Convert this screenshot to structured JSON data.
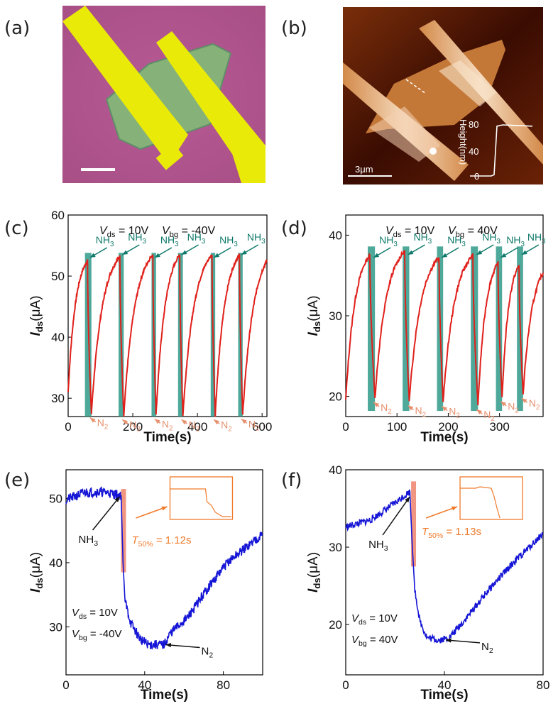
{
  "panel_labels": [
    "(a)",
    "(b)",
    "(c)",
    "(d)",
    "(e)",
    "(f)"
  ],
  "colors": {
    "red_trace": "#e0201b",
    "blue_trace": "#1515d6",
    "teal_band": "#2f9a8a",
    "teal_text": "#0f7a6b",
    "n2_text": "#e6906e",
    "orange": "#f07a2a",
    "pink_band": "#f08a76"
  },
  "image_a": {
    "scale_bar": "",
    "description_colors": [
      "#b6568f",
      "#e8e800",
      "#7fb070"
    ]
  },
  "image_b": {
    "scale_bar_label": "3μm",
    "height_axis_label": "Height(nm)",
    "height_ticks": [
      "80",
      "40",
      "0"
    ],
    "profile_heights_nm": [
      0,
      0,
      0,
      2,
      78,
      80,
      79,
      78
    ]
  },
  "chart_data": [
    {
      "id": "c",
      "type": "line",
      "xlabel": "Time(s)",
      "ylabel_main": "I",
      "ylabel_sub": "ds",
      "ylabel_unit": "(μA)",
      "xlim": [
        0,
        615
      ],
      "ylim": [
        27,
        60
      ],
      "xticks": [
        0,
        200,
        400,
        600
      ],
      "yticks": [
        30,
        40,
        50,
        60
      ],
      "conditions": {
        "vds_main": "V",
        "vds_sub": "ds",
        "vds_val": " = 10V",
        "vbg_main": "V",
        "vbg_sub": "bg",
        "vbg_val": " = -40V"
      },
      "gas_on_main": "NH",
      "gas_on_sub": "3",
      "gas_off_main": "N",
      "gas_off_sub": "2",
      "trace": {
        "start": 31,
        "cycles": [
          {
            "t0": 0,
            "tp": 60,
            "peak": 52.5,
            "td": 72,
            "valley": 27.5
          },
          {
            "t0": 72,
            "tp": 160,
            "peak": 53.2,
            "td": 172,
            "valley": 27.2
          },
          {
            "t0": 172,
            "tp": 262,
            "peak": 53.5,
            "td": 272,
            "valley": 27.3
          },
          {
            "t0": 272,
            "tp": 345,
            "peak": 53.5,
            "td": 355,
            "valley": 27.2
          },
          {
            "t0": 355,
            "tp": 445,
            "peak": 53.5,
            "td": 455,
            "valley": 27.2
          },
          {
            "t0": 455,
            "tp": 530,
            "peak": 53.5,
            "td": 540,
            "valley": 27.3
          }
        ],
        "end_t": 615,
        "end_v": 52.5
      },
      "bands": [
        [
          52,
          72
        ],
        [
          156,
          172
        ],
        [
          258,
          272
        ],
        [
          340,
          355
        ],
        [
          441,
          455
        ],
        [
          526,
          540
        ]
      ],
      "band_ylim": [
        27,
        53.8
      ]
    },
    {
      "id": "d",
      "type": "line",
      "xlabel": "Time(s)",
      "ylabel_main": "I",
      "ylabel_sub": "ds",
      "ylabel_unit": "(μA)",
      "xlim": [
        0,
        385
      ],
      "ylim": [
        17.5,
        42.5
      ],
      "xticks": [
        0,
        100,
        200,
        300
      ],
      "yticks": [
        20,
        30,
        40
      ],
      "conditions": {
        "vds_main": "V",
        "vds_sub": "ds",
        "vds_val": " = 10V",
        "vbg_main": "V",
        "vbg_sub": "bg",
        "vbg_val": " = 40V"
      },
      "gas_on_main": "NH",
      "gas_on_sub": "3",
      "gas_off_main": "N",
      "gas_off_sub": "2",
      "trace": {
        "start": 19.5,
        "cycles": [
          {
            "t0": 0,
            "tp": 47,
            "peak": 37.5,
            "td": 57,
            "valley": 19.8
          },
          {
            "t0": 57,
            "tp": 115,
            "peak": 38,
            "td": 124,
            "valley": 19.4
          },
          {
            "t0": 124,
            "tp": 182,
            "peak": 37.2,
            "td": 190,
            "valley": 19.3
          },
          {
            "t0": 190,
            "tp": 248,
            "peak": 37.5,
            "td": 258,
            "valley": 18.9
          },
          {
            "t0": 258,
            "tp": 297,
            "peak": 36.5,
            "td": 305,
            "valley": 19.9
          },
          {
            "t0": 305,
            "tp": 338,
            "peak": 36.2,
            "td": 346,
            "valley": 20.3
          }
        ],
        "end_t": 385,
        "end_v": 35.3
      },
      "bands": [
        [
          43,
          57
        ],
        [
          111,
          124
        ],
        [
          178,
          190
        ],
        [
          244,
          258
        ],
        [
          293,
          305
        ],
        [
          334,
          346
        ]
      ],
      "band_ylim": [
        18.2,
        38.6
      ]
    },
    {
      "id": "e",
      "type": "line",
      "xlabel": "Time(s)",
      "ylabel_main": "I",
      "ylabel_sub": "ds",
      "ylabel_unit": "(μA)",
      "xlim": [
        0,
        100
      ],
      "ylim": [
        22.5,
        54.5
      ],
      "xticks": [
        0,
        40,
        80
      ],
      "yticks": [
        30,
        40,
        50
      ],
      "conditions": {
        "vds_main": "V",
        "vds_sub": "ds",
        "vds_val": " = 10V",
        "vbg_main": "V",
        "vbg_sub": "bg",
        "vbg_val": " = -40V"
      },
      "gas_on_main": "NH",
      "gas_on_sub": "3",
      "gas_off_main": "N",
      "gas_off_sub": "2",
      "t50_main": "T",
      "t50_sub": "50%",
      "t50_val": " = 1.12s",
      "trace_points": [
        [
          0,
          49.8
        ],
        [
          10,
          51
        ],
        [
          20,
          51
        ],
        [
          28,
          50.5
        ],
        [
          29,
          40
        ],
        [
          30,
          34
        ],
        [
          33,
          30.5
        ],
        [
          38,
          28
        ],
        [
          42,
          27.2
        ],
        [
          50,
          27.2
        ],
        [
          53,
          29
        ],
        [
          62,
          31.5
        ],
        [
          72,
          36
        ],
        [
          82,
          40
        ],
        [
          92,
          42.5
        ],
        [
          100,
          44.5
        ]
      ],
      "noise_amp": 0.75,
      "band": [
        28,
        30.5
      ],
      "band_ylim": [
        38.5,
        51.5
      ]
    },
    {
      "id": "f",
      "type": "line",
      "xlabel": "Time(s)",
      "ylabel_main": "I",
      "ylabel_sub": "ds",
      "ylabel_unit": "(μA)",
      "xlim": [
        0,
        80
      ],
      "ylim": [
        13.5,
        40
      ],
      "xticks": [
        0,
        40,
        80
      ],
      "yticks": [
        20,
        30,
        40
      ],
      "conditions": {
        "vds_main": "V",
        "vds_sub": "ds",
        "vds_val": " = 10V",
        "vbg_main": "V",
        "vbg_sub": "bg",
        "vbg_val": " = 40V"
      },
      "gas_on_main": "NH",
      "gas_on_sub": "3",
      "gas_off_main": "N",
      "gas_off_sub": "2",
      "t50_main": "T",
      "t50_sub": "50%",
      "t50_val": " = 1.13s",
      "trace_points": [
        [
          0,
          32.6
        ],
        [
          10,
          33.5
        ],
        [
          20,
          35.7
        ],
        [
          26,
          37.2
        ],
        [
          27,
          30
        ],
        [
          28,
          24.5
        ],
        [
          30,
          20.5
        ],
        [
          33,
          18.3
        ],
        [
          38,
          18
        ],
        [
          42,
          18.3
        ],
        [
          48,
          20.5
        ],
        [
          58,
          24.5
        ],
        [
          68,
          28
        ],
        [
          76,
          30.5
        ],
        [
          80,
          31.8
        ]
      ],
      "noise_amp": 0.45,
      "band": [
        26.5,
        28.5
      ],
      "band_ylim": [
        27.5,
        38.5
      ]
    }
  ]
}
